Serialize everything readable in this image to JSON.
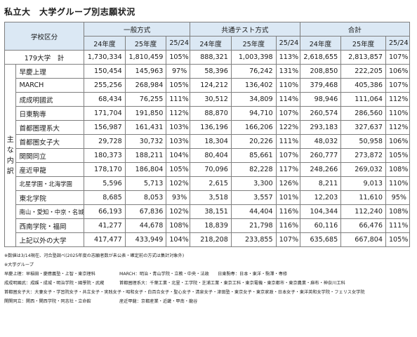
{
  "title": "私立大　大学グループ別志願状況",
  "table": {
    "corner": "学校区分",
    "groups": [
      "一般方式",
      "共通テスト方式",
      "合計"
    ],
    "subheaders": [
      "24年度",
      "25年度",
      "25/24"
    ],
    "side_label": [
      "主",
      "な",
      "内",
      "訳"
    ],
    "total_row": {
      "label": "179大学　計",
      "cells": [
        "1,730,334",
        "1,810,459",
        "105%",
        "888,321",
        "1,003,398",
        "113%",
        "2,618,655",
        "2,813,857",
        "107%"
      ]
    },
    "rows": [
      {
        "label": "早慶上理",
        "cells": [
          "150,454",
          "145,963",
          "97%",
          "58,396",
          "76,242",
          "131%",
          "208,850",
          "222,205",
          "106%"
        ]
      },
      {
        "label": "MARCH",
        "cells": [
          "255,256",
          "268,984",
          "105%",
          "124,212",
          "136,402",
          "110%",
          "379,468",
          "405,386",
          "107%"
        ]
      },
      {
        "label": "成成明國武",
        "cells": [
          "68,434",
          "76,255",
          "111%",
          "30,512",
          "34,809",
          "114%",
          "98,946",
          "111,064",
          "112%"
        ]
      },
      {
        "label": "日東駒専",
        "cells": [
          "171,704",
          "191,850",
          "112%",
          "88,870",
          "94,710",
          "107%",
          "260,574",
          "286,560",
          "110%"
        ]
      },
      {
        "label": "首都圏理系大",
        "cells": [
          "156,987",
          "161,431",
          "103%",
          "136,196",
          "166,206",
          "122%",
          "293,183",
          "327,637",
          "112%"
        ]
      },
      {
        "label": "首都圏女子大",
        "cells": [
          "29,728",
          "30,732",
          "103%",
          "18,304",
          "20,226",
          "111%",
          "48,032",
          "50,958",
          "106%"
        ]
      },
      {
        "label": "関関同立",
        "cells": [
          "180,373",
          "188,211",
          "104%",
          "80,404",
          "85,661",
          "107%",
          "260,777",
          "273,872",
          "105%"
        ]
      },
      {
        "label": "産近甲龍",
        "cells": [
          "178,170",
          "186,804",
          "105%",
          "70,096",
          "82,228",
          "117%",
          "248,266",
          "269,032",
          "108%"
        ]
      },
      {
        "label": "北星学園・北海学園",
        "cells": [
          "5,596",
          "5,713",
          "102%",
          "2,615",
          "3,300",
          "126%",
          "8,211",
          "9,013",
          "110%"
        ]
      },
      {
        "label": "東北学院",
        "cells": [
          "8,685",
          "8,053",
          "93%",
          "3,518",
          "3,557",
          "101%",
          "12,203",
          "11,610",
          "95%"
        ]
      },
      {
        "label": "南山・愛知・中京・名城",
        "cells": [
          "66,193",
          "67,836",
          "102%",
          "38,151",
          "44,404",
          "116%",
          "104,344",
          "112,240",
          "108%"
        ]
      },
      {
        "label": "西南学院・福岡",
        "cells": [
          "41,277",
          "44,678",
          "108%",
          "18,839",
          "21,798",
          "116%",
          "60,116",
          "66,476",
          "111%"
        ]
      },
      {
        "label": "上記以外の大学",
        "cells": [
          "417,477",
          "433,949",
          "104%",
          "218,208",
          "233,855",
          "107%",
          "635,685",
          "667,804",
          "105%"
        ]
      }
    ]
  },
  "notes": {
    "note1": "※数値は3/14現在、河合塾調べ(2025年度の志願者数が未公表・確定前の方式は集計対象外)",
    "note2": "※大学グループ",
    "groups": [
      [
        "早慶上理：早稲田・慶應義塾・上智・東京理科",
        "MARCH：明治・青山学院・立教・中央・法政　　日東駒専：日本・東洋・駒澤・専修"
      ],
      [
        "成成明國武：成蹊・成城・明治学院・國學院・武蔵",
        "首都圏理系大：千葉工業・北里・工学院・芝浦工業・東京工科・東京電機・東京都市・東京農業・麻布・神奈川工科"
      ],
      [
        "首都圏女子大：大妻女子・学習院女子・共立女子・実践女子・昭和女子・白百合女子・聖心女子・清泉女子・津田塾・東京女子・東京家政・日本女子・東洋英和女学院・フェリス女学院",
        ""
      ],
      [
        "関関同立：関西・関西学院・同志社・立命館",
        "産近甲龍：京都産業・近畿・甲南・龍谷"
      ]
    ]
  }
}
